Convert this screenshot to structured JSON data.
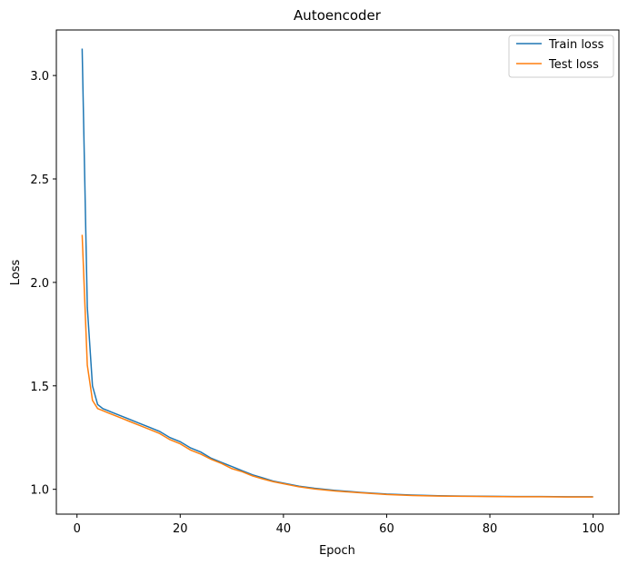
{
  "chart_data": {
    "type": "line",
    "title": "Autoencoder",
    "xlabel": "Epoch",
    "ylabel": "Loss",
    "xlim": [
      -4.0,
      105.0
    ],
    "ylim": [
      0.88,
      3.22
    ],
    "xticks": [
      0,
      20,
      40,
      60,
      80,
      100
    ],
    "yticks": [
      1.0,
      1.5,
      2.0,
      2.5,
      3.0
    ],
    "grid": false,
    "legend_position": "top-right",
    "series": [
      {
        "name": "Train loss",
        "color": "#1f77b4",
        "points": [
          [
            1,
            3.13
          ],
          [
            2,
            1.88
          ],
          [
            3,
            1.5
          ],
          [
            4,
            1.41
          ],
          [
            5,
            1.39
          ],
          [
            6,
            1.38
          ],
          [
            7,
            1.37
          ],
          [
            8,
            1.36
          ],
          [
            9,
            1.35
          ],
          [
            10,
            1.34
          ],
          [
            12,
            1.32
          ],
          [
            14,
            1.3
          ],
          [
            16,
            1.28
          ],
          [
            18,
            1.25
          ],
          [
            20,
            1.23
          ],
          [
            22,
            1.2
          ],
          [
            24,
            1.18
          ],
          [
            26,
            1.15
          ],
          [
            28,
            1.13
          ],
          [
            30,
            1.11
          ],
          [
            32,
            1.09
          ],
          [
            34,
            1.07
          ],
          [
            36,
            1.055
          ],
          [
            38,
            1.04
          ],
          [
            40,
            1.03
          ],
          [
            43,
            1.015
          ],
          [
            46,
            1.005
          ],
          [
            50,
            0.995
          ],
          [
            55,
            0.985
          ],
          [
            60,
            0.977
          ],
          [
            65,
            0.972
          ],
          [
            70,
            0.969
          ],
          [
            75,
            0.967
          ],
          [
            80,
            0.966
          ],
          [
            85,
            0.965
          ],
          [
            90,
            0.965
          ],
          [
            95,
            0.964
          ],
          [
            100,
            0.964
          ]
        ]
      },
      {
        "name": "Test loss",
        "color": "#ff7f0e",
        "points": [
          [
            1,
            2.23
          ],
          [
            2,
            1.6
          ],
          [
            3,
            1.43
          ],
          [
            4,
            1.39
          ],
          [
            5,
            1.38
          ],
          [
            6,
            1.37
          ],
          [
            7,
            1.36
          ],
          [
            8,
            1.35
          ],
          [
            9,
            1.34
          ],
          [
            10,
            1.33
          ],
          [
            12,
            1.31
          ],
          [
            14,
            1.29
          ],
          [
            16,
            1.27
          ],
          [
            18,
            1.24
          ],
          [
            20,
            1.22
          ],
          [
            22,
            1.19
          ],
          [
            24,
            1.17
          ],
          [
            26,
            1.145
          ],
          [
            28,
            1.125
          ],
          [
            30,
            1.1
          ],
          [
            32,
            1.085
          ],
          [
            34,
            1.065
          ],
          [
            36,
            1.05
          ],
          [
            38,
            1.037
          ],
          [
            40,
            1.027
          ],
          [
            43,
            1.012
          ],
          [
            46,
            1.002
          ],
          [
            50,
            0.992
          ],
          [
            55,
            0.983
          ],
          [
            60,
            0.975
          ],
          [
            65,
            0.97
          ],
          [
            70,
            0.967
          ],
          [
            75,
            0.966
          ],
          [
            80,
            0.965
          ],
          [
            85,
            0.964
          ],
          [
            90,
            0.964
          ],
          [
            95,
            0.963
          ],
          [
            100,
            0.963
          ]
        ]
      }
    ]
  }
}
